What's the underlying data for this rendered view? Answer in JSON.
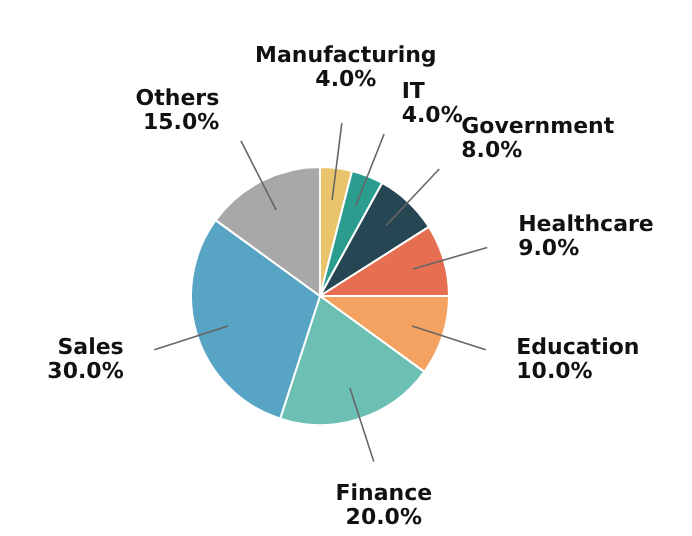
{
  "chart_data": {
    "type": "pie",
    "categories": [
      "Manufacturing",
      "IT",
      "Government",
      "Healthcare",
      "Education",
      "Finance",
      "Sales",
      "Others"
    ],
    "values": [
      4,
      4,
      8,
      9,
      10,
      20,
      30,
      15
    ],
    "value_labels": [
      "4.0%",
      "4.0%",
      "8.0%",
      "9.0%",
      "10.0%",
      "20.0%",
      "30.0%",
      "15.0%"
    ],
    "colors": [
      "#e9c46a",
      "#2a9d8f",
      "#264653",
      "#e76f51",
      "#f4a261",
      "#6cbfb3",
      "#58a4c4",
      "#a8a8a8"
    ],
    "legend": false
  }
}
